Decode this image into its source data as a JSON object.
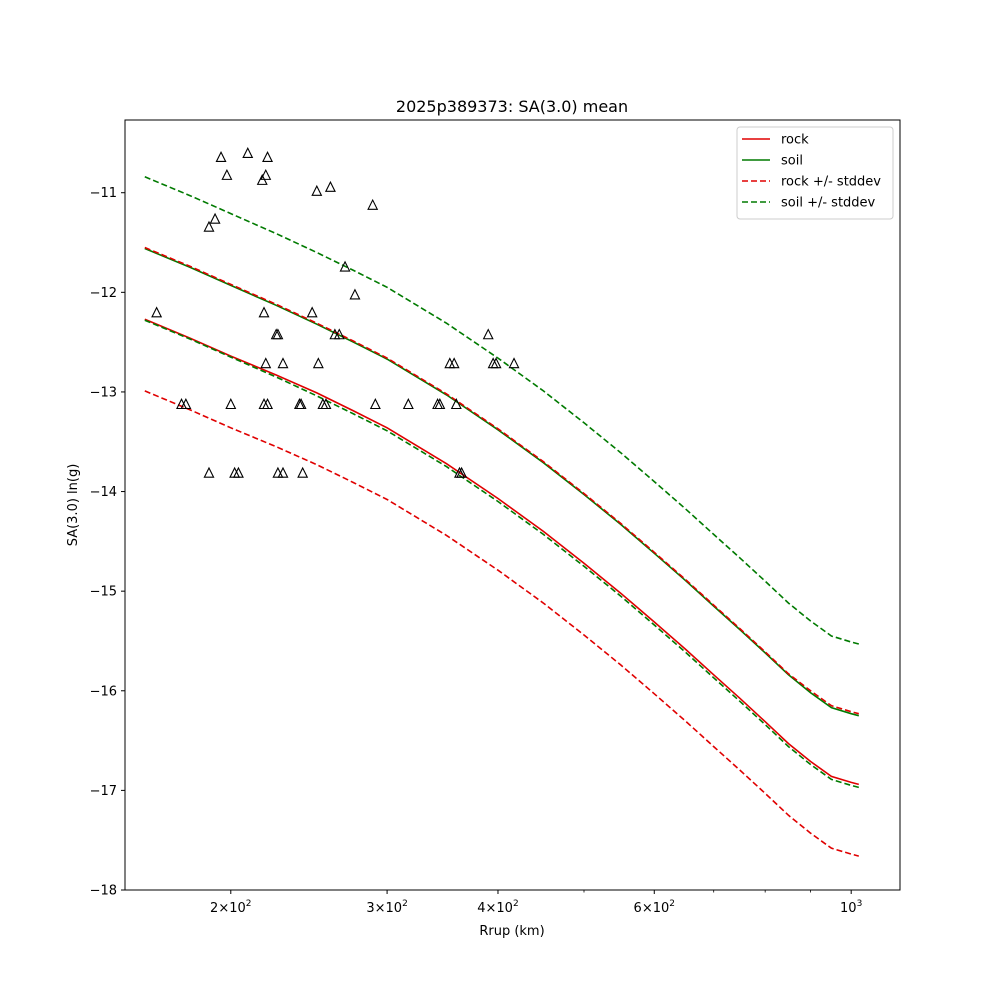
{
  "chart_data": {
    "type": "line",
    "title": "2025p389373: SA(3.0) mean",
    "xlabel": "Rrup (km)",
    "ylabel": "SA(3.0) ln(g)",
    "xscale": "log",
    "xlim": [
      152,
      1135
    ],
    "ylim": [
      -18.0,
      -10.27
    ],
    "yticks": [
      -18,
      -17,
      -16,
      -15,
      -14,
      -13,
      -12,
      -11
    ],
    "xticks_major": [
      {
        "value": 200,
        "base": "2×10",
        "exp": "2"
      },
      {
        "value": 300,
        "base": "3×10",
        "exp": "2"
      },
      {
        "value": 400,
        "base": "4×10",
        "exp": "2"
      },
      {
        "value": 600,
        "base": "6×10",
        "exp": "2"
      },
      {
        "value": 1000,
        "base": "10",
        "exp": "3"
      }
    ],
    "xticks_minor": [
      500,
      700,
      800,
      900
    ],
    "grid": false,
    "legend_position": "top-right",
    "colors": {
      "rock": "#e00000",
      "soil": "#007a00",
      "observed": "#000000"
    },
    "x": [
      160,
      180,
      200,
      225,
      250,
      275,
      300,
      350,
      400,
      450,
      500,
      550,
      600,
      650,
      700,
      750,
      800,
      850,
      900,
      950,
      1000,
      1020
    ],
    "series": [
      {
        "name": "rock",
        "color": "#e00000",
        "dash": false,
        "values": [
          -12.27,
          -12.46,
          -12.64,
          -12.83,
          -13.01,
          -13.19,
          -13.36,
          -13.72,
          -14.07,
          -14.4,
          -14.72,
          -15.02,
          -15.31,
          -15.58,
          -15.84,
          -16.08,
          -16.31,
          -16.53,
          -16.71,
          -16.86,
          -16.92,
          -16.94
        ]
      },
      {
        "name": "soil",
        "color": "#007a00",
        "dash": false,
        "values": [
          -11.56,
          -11.75,
          -11.93,
          -12.13,
          -12.32,
          -12.5,
          -12.67,
          -13.03,
          -13.38,
          -13.71,
          -14.03,
          -14.33,
          -14.62,
          -14.89,
          -15.15,
          -15.39,
          -15.62,
          -15.84,
          -16.02,
          -16.17,
          -16.23,
          -16.25
        ]
      },
      {
        "name": "",
        "color": "#e00000",
        "dash": true,
        "values": [
          -11.55,
          -11.74,
          -11.92,
          -12.12,
          -12.31,
          -12.49,
          -12.66,
          -13.02,
          -13.37,
          -13.7,
          -14.02,
          -14.32,
          -14.61,
          -14.88,
          -15.14,
          -15.38,
          -15.61,
          -15.83,
          -16.0,
          -16.15,
          -16.21,
          -16.23
        ]
      },
      {
        "name": "rock +/- stddev",
        "color": "#e00000",
        "dash": true,
        "values": [
          -12.99,
          -13.18,
          -13.36,
          -13.55,
          -13.73,
          -13.91,
          -14.08,
          -14.44,
          -14.79,
          -15.12,
          -15.44,
          -15.74,
          -16.03,
          -16.3,
          -16.56,
          -16.8,
          -17.03,
          -17.25,
          -17.43,
          -17.58,
          -17.64,
          -17.66
        ]
      },
      {
        "name": "soil +/- stddev",
        "color": "#007a00",
        "dash": true,
        "values": [
          -10.84,
          -11.03,
          -11.21,
          -11.41,
          -11.6,
          -11.78,
          -11.95,
          -12.31,
          -12.66,
          -12.99,
          -13.31,
          -13.61,
          -13.9,
          -14.17,
          -14.43,
          -14.67,
          -14.9,
          -15.12,
          -15.3,
          -15.45,
          -15.51,
          -15.53
        ]
      },
      {
        "name": "",
        "color": "#007a00",
        "dash": true,
        "values": [
          -12.28,
          -12.47,
          -12.65,
          -12.85,
          -13.04,
          -13.22,
          -13.39,
          -13.75,
          -14.1,
          -14.43,
          -14.75,
          -15.05,
          -15.34,
          -15.61,
          -15.87,
          -16.11,
          -16.34,
          -16.56,
          -16.74,
          -16.89,
          -16.95,
          -16.97
        ]
      }
    ],
    "observations": [
      {
        "x": 195,
        "y": -10.65
      },
      {
        "x": 209,
        "y": -10.61
      },
      {
        "x": 220,
        "y": -10.65
      },
      {
        "x": 198,
        "y": -10.83
      },
      {
        "x": 217,
        "y": -10.88
      },
      {
        "x": 219,
        "y": -10.83
      },
      {
        "x": 250,
        "y": -10.99
      },
      {
        "x": 259,
        "y": -10.95
      },
      {
        "x": 289,
        "y": -11.13
      },
      {
        "x": 192,
        "y": -11.27
      },
      {
        "x": 189,
        "y": -11.35
      },
      {
        "x": 269,
        "y": -11.75
      },
      {
        "x": 276,
        "y": -12.03
      },
      {
        "x": 165,
        "y": -12.21
      },
      {
        "x": 218,
        "y": -12.21
      },
      {
        "x": 247,
        "y": -12.21
      },
      {
        "x": 225,
        "y": -12.43
      },
      {
        "x": 226,
        "y": -12.43
      },
      {
        "x": 262,
        "y": -12.43
      },
      {
        "x": 265,
        "y": -12.43
      },
      {
        "x": 390,
        "y": -12.43
      },
      {
        "x": 219,
        "y": -12.72
      },
      {
        "x": 229,
        "y": -12.72
      },
      {
        "x": 251,
        "y": -12.72
      },
      {
        "x": 353,
        "y": -12.72
      },
      {
        "x": 357,
        "y": -12.72
      },
      {
        "x": 395,
        "y": -12.72
      },
      {
        "x": 398,
        "y": -12.72
      },
      {
        "x": 417,
        "y": -12.72
      },
      {
        "x": 176,
        "y": -13.13
      },
      {
        "x": 178,
        "y": -13.13
      },
      {
        "x": 200,
        "y": -13.13
      },
      {
        "x": 218,
        "y": -13.13
      },
      {
        "x": 220,
        "y": -13.13
      },
      {
        "x": 239,
        "y": -13.13
      },
      {
        "x": 240,
        "y": -13.13
      },
      {
        "x": 254,
        "y": -13.13
      },
      {
        "x": 256,
        "y": -13.13
      },
      {
        "x": 291,
        "y": -13.13
      },
      {
        "x": 317,
        "y": -13.13
      },
      {
        "x": 342,
        "y": -13.13
      },
      {
        "x": 344,
        "y": -13.13
      },
      {
        "x": 359,
        "y": -13.13
      },
      {
        "x": 189,
        "y": -13.82
      },
      {
        "x": 202,
        "y": -13.82
      },
      {
        "x": 204,
        "y": -13.82
      },
      {
        "x": 226,
        "y": -13.82
      },
      {
        "x": 229,
        "y": -13.82
      },
      {
        "x": 241,
        "y": -13.82
      },
      {
        "x": 362,
        "y": -13.82
      },
      {
        "x": 364,
        "y": -13.82
      }
    ]
  }
}
